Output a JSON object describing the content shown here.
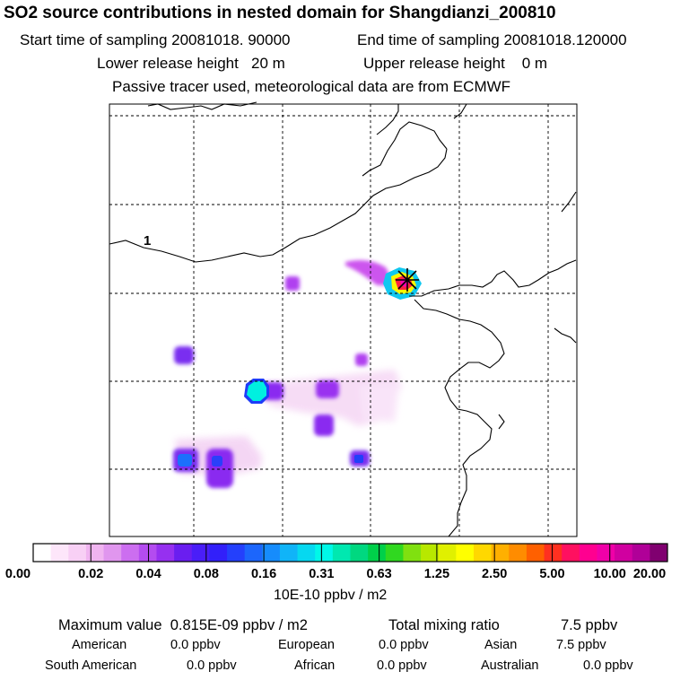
{
  "header": {
    "title": "SO2 source contributions in nested domain for Shangdianzi_200810",
    "start_label": "Start time of sampling 20081018. 90000",
    "end_label": "End time of sampling 20081018.120000",
    "lower_label": "Lower release height   20 m",
    "upper_label": "Upper release height    0 m",
    "tracer_note": "Passive tracer used, meteorological data are from ECMWF"
  },
  "map": {
    "region_label": "1",
    "colors": {
      "coast": "#000000",
      "grid": "#000000",
      "marker": "#000000"
    }
  },
  "colorbar": {
    "colors": [
      "#ffffff",
      "#fde6fa",
      "#f8d0f5",
      "#f0b4f0",
      "#e096ee",
      "#cc6ef0",
      "#b44cf0",
      "#9630f0",
      "#6a1ef0",
      "#4a1ef8",
      "#3220fa",
      "#2440fc",
      "#1c66fc",
      "#168cfc",
      "#10b4f8",
      "#06d8f0",
      "#00f8e8",
      "#00e8b0",
      "#00d880",
      "#00d04a",
      "#30d820",
      "#80e010",
      "#b8e800",
      "#e0f000",
      "#ffff00",
      "#ffd800",
      "#ffb000",
      "#ff8c00",
      "#ff6000",
      "#ff3020",
      "#ff1060",
      "#ff0090",
      "#f000a8",
      "#d000a0",
      "#b00098",
      "#800070"
    ],
    "ticks": [
      "0.00",
      "0.02",
      "0.04",
      "0.08",
      "0.16",
      "0.31",
      "0.63",
      "1.25",
      "2.50",
      "5.00",
      "10.00",
      "20.00"
    ],
    "unit": "10E-10 ppbv / m2"
  },
  "summary": {
    "max_label": "Maximum value  0.815E-09 ppbv / m2",
    "total_label": "Total mixing ratio",
    "total_value": "7.5 ppbv",
    "regions": [
      {
        "name": "American",
        "value": "0.0 ppbv"
      },
      {
        "name": "European",
        "value": "0.0 ppbv"
      },
      {
        "name": "Asian",
        "value": "7.5 ppbv"
      },
      {
        "name": "South American",
        "value": "0.0 ppbv"
      },
      {
        "name": "African",
        "value": "0.0 ppbv"
      },
      {
        "name": "Australian",
        "value": "0.0 ppbv"
      }
    ]
  }
}
